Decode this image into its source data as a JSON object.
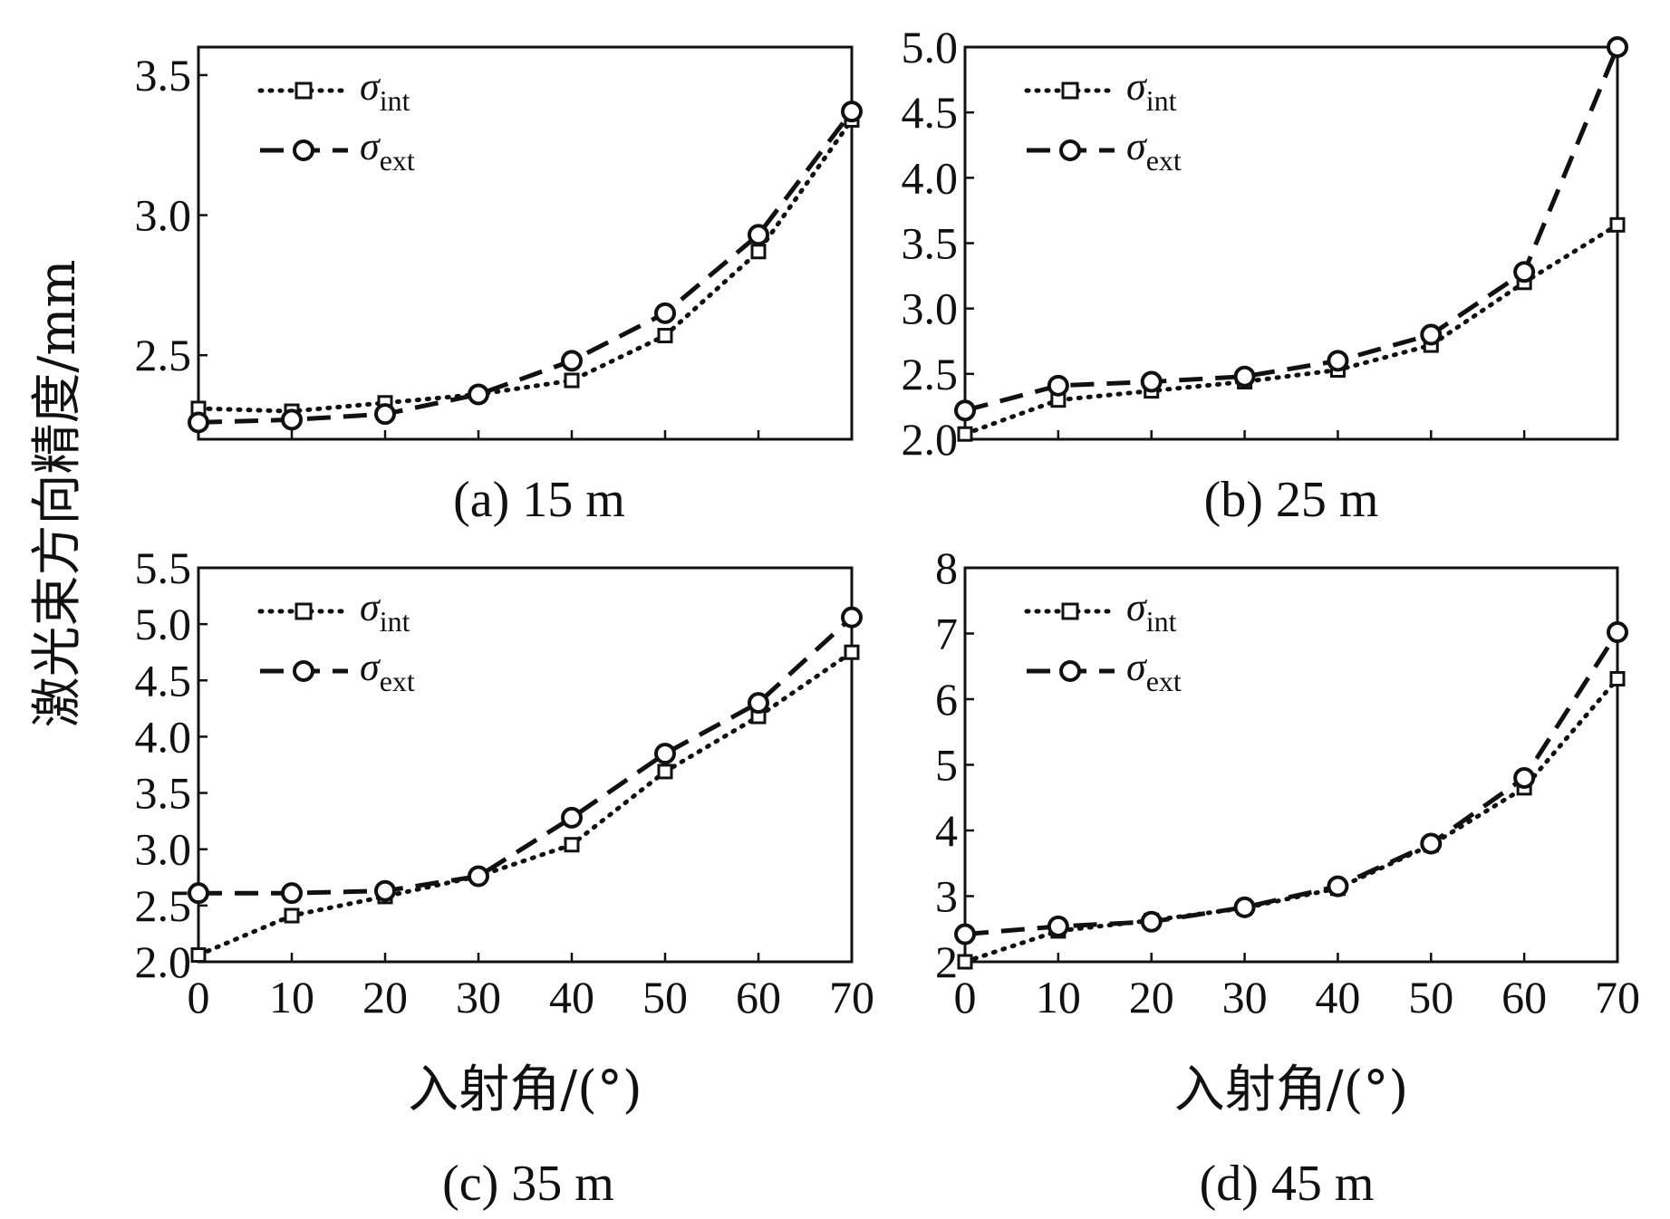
{
  "figure": {
    "ylabel": "激光束方向精度/mm",
    "xlabel": "入射角/(°)"
  },
  "chart_data": [
    {
      "type": "line",
      "title": "(a) 15 m",
      "xlabel": "",
      "ylabel": "激光束方向精度/mm",
      "x": [
        0,
        10,
        20,
        30,
        40,
        50,
        60,
        70
      ],
      "xlim": [
        0,
        70
      ],
      "ylim": [
        2.2,
        3.6
      ],
      "yticks": [
        "2.5",
        "3.0",
        "3.5"
      ],
      "xticks": [],
      "series": [
        {
          "name": "σint",
          "sym": "σ",
          "sub": "int",
          "style": "dotted",
          "marker": "square",
          "values": [
            2.31,
            2.3,
            2.33,
            2.36,
            2.41,
            2.57,
            2.87,
            3.34
          ]
        },
        {
          "name": "σext",
          "sym": "σ",
          "sub": "ext",
          "style": "dashed",
          "marker": "circle",
          "values": [
            2.26,
            2.27,
            2.29,
            2.36,
            2.48,
            2.65,
            2.93,
            3.37
          ]
        }
      ],
      "legend": "top-left"
    },
    {
      "type": "line",
      "title": "(b) 25 m",
      "xlabel": "",
      "ylabel": "",
      "x": [
        0,
        10,
        20,
        30,
        40,
        50,
        60,
        70
      ],
      "xlim": [
        0,
        70
      ],
      "ylim": [
        2.0,
        5.0
      ],
      "yticks": [
        "2.0",
        "2.5",
        "3.0",
        "3.5",
        "4.0",
        "4.5",
        "5.0"
      ],
      "xticks": [],
      "series": [
        {
          "name": "σint",
          "sym": "σ",
          "sub": "int",
          "style": "dotted",
          "marker": "square",
          "values": [
            2.04,
            2.3,
            2.37,
            2.44,
            2.53,
            2.72,
            3.2,
            3.64
          ]
        },
        {
          "name": "σext",
          "sym": "σ",
          "sub": "ext",
          "style": "dashed",
          "marker": "circle",
          "values": [
            2.22,
            2.41,
            2.44,
            2.48,
            2.6,
            2.8,
            3.28,
            5.0
          ]
        }
      ],
      "legend": "top-left"
    },
    {
      "type": "line",
      "title": "(c) 35 m",
      "xlabel": "入射角/(°)",
      "ylabel": "激光束方向精度/mm",
      "x": [
        0,
        10,
        20,
        30,
        40,
        50,
        60,
        70
      ],
      "xlim": [
        0,
        70
      ],
      "ylim": [
        2.0,
        5.5
      ],
      "yticks": [
        "2.0",
        "2.5",
        "3.0",
        "3.5",
        "4.0",
        "4.5",
        "5.0",
        "5.5"
      ],
      "xticks": [
        "0",
        "10",
        "20",
        "30",
        "40",
        "50",
        "60",
        "70"
      ],
      "series": [
        {
          "name": "σint",
          "sym": "σ",
          "sub": "int",
          "style": "dotted",
          "marker": "square",
          "values": [
            2.06,
            2.41,
            2.58,
            2.76,
            3.04,
            3.69,
            4.18,
            4.75
          ]
        },
        {
          "name": "σext",
          "sym": "σ",
          "sub": "ext",
          "style": "dashed",
          "marker": "circle",
          "values": [
            2.61,
            2.61,
            2.63,
            2.76,
            3.28,
            3.85,
            4.3,
            5.06
          ]
        }
      ],
      "legend": "top-left"
    },
    {
      "type": "line",
      "title": "(d) 45 m",
      "xlabel": "入射角/(°)",
      "ylabel": "",
      "x": [
        0,
        10,
        20,
        30,
        40,
        50,
        60,
        70
      ],
      "xlim": [
        0,
        70
      ],
      "ylim": [
        2,
        8
      ],
      "yticks": [
        "2",
        "3",
        "4",
        "5",
        "6",
        "7",
        "8"
      ],
      "xticks": [
        "0",
        "10",
        "20",
        "30",
        "40",
        "50",
        "60",
        "70"
      ],
      "series": [
        {
          "name": "σint",
          "sym": "σ",
          "sub": "int",
          "style": "dotted",
          "marker": "square",
          "values": [
            2.0,
            2.47,
            2.63,
            2.82,
            3.12,
            3.78,
            4.65,
            6.31
          ]
        },
        {
          "name": "σext",
          "sym": "σ",
          "sub": "ext",
          "style": "dashed",
          "marker": "circle",
          "values": [
            2.42,
            2.54,
            2.61,
            2.83,
            3.15,
            3.8,
            4.8,
            7.02
          ]
        }
      ],
      "legend": "top-left"
    }
  ]
}
